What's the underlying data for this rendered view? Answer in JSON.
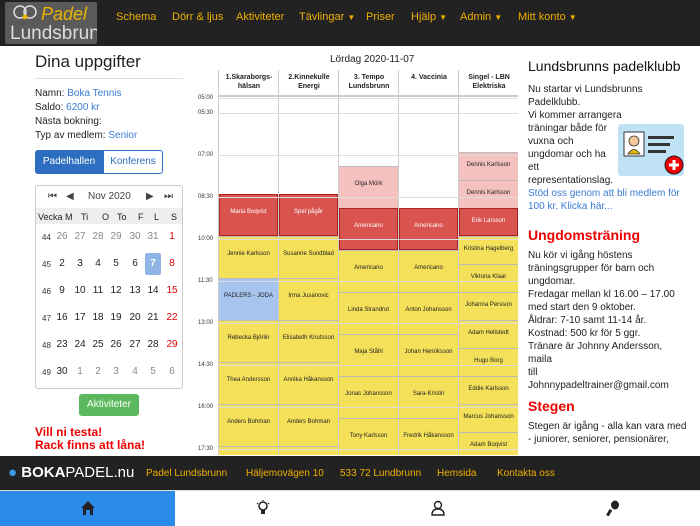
{
  "nav": {
    "logo_line1": "Padel",
    "logo_line2": "Lundsbrunn",
    "items": [
      "Schema",
      "Dörr & ljus",
      "Aktiviteter",
      "Tävlingar",
      "Priser",
      "Hjälp",
      "Admin",
      "Mitt konto"
    ]
  },
  "left": {
    "title": "Dina uppgifter",
    "name_label": "Namn:",
    "name_value": "Boka Tennis",
    "saldo_label": "Saldo:",
    "saldo_value": "6200 kr",
    "next_label": "Nästa bokning:",
    "type_label": "Typ av medlem:",
    "type_value": "Senior",
    "tab_active": "Padelhallen",
    "tab_inactive": "Konferens"
  },
  "calendar": {
    "month": "Nov 2020",
    "week_label": "Vecka",
    "weekdays": [
      "M",
      "Ti",
      "O",
      "To",
      "F",
      "L",
      "S"
    ],
    "rows": [
      {
        "week": "44",
        "days": [
          "26",
          "27",
          "28",
          "29",
          "30",
          "31",
          "1"
        ]
      },
      {
        "week": "45",
        "days": [
          "2",
          "3",
          "4",
          "5",
          "6",
          "7",
          "8"
        ]
      },
      {
        "week": "46",
        "days": [
          "9",
          "10",
          "11",
          "12",
          "13",
          "14",
          "15"
        ]
      },
      {
        "week": "47",
        "days": [
          "16",
          "17",
          "18",
          "19",
          "20",
          "21",
          "22"
        ]
      },
      {
        "week": "48",
        "days": [
          "23",
          "24",
          "25",
          "26",
          "27",
          "28",
          "29"
        ]
      },
      {
        "week": "49",
        "days": [
          "30",
          "1",
          "2",
          "3",
          "4",
          "5",
          "6"
        ]
      }
    ],
    "selected": "7"
  },
  "activities_button": "Aktiviteter",
  "notice_line1": "Vill ni testa!",
  "notice_line2": "Rack finns att låna!",
  "schedule": {
    "date": "Lördag   2020-11-07",
    "times": [
      "05:00",
      "05:30",
      "07:00",
      "08:30",
      "10:00",
      "11:30",
      "13:00",
      "14:30",
      "16:00",
      "17:30"
    ],
    "courts": [
      {
        "name1": "1.Skaraborgs-",
        "name2": "hälsan"
      },
      {
        "name1": "2.Kinnekulle",
        "name2": "Energi"
      },
      {
        "name1": "3. Tempo",
        "name2": "Lundsbrunn"
      },
      {
        "name1": "4. Vaccinia",
        "name2": ""
      },
      {
        "name1": "Singel - LBN",
        "name2": "Elektriska"
      }
    ],
    "slots": [
      [
        {
          "text": "Maria Boqvist",
          "color": "#d9534f",
          "start": 124,
          "h": 42
        },
        {
          "text": "Jennie Karlsson",
          "color": "#f5e05a",
          "start": 166,
          "h": 42
        },
        {
          "text": "PADLERS - JODA",
          "color": "#a7c4ef",
          "start": 208,
          "h": 42
        },
        {
          "text": "Rebecka Björlin",
          "color": "#f5e05a",
          "start": 250,
          "h": 42
        },
        {
          "text": "Thea Andersson",
          "color": "#f5e05a",
          "start": 292,
          "h": 42
        },
        {
          "text": "Anders Bohman",
          "color": "#f5e05a",
          "start": 334,
          "h": 42
        },
        {
          "text": "",
          "color": "#f5e05a",
          "start": 376,
          "h": 12
        }
      ],
      [
        {
          "text": "Spel pågår",
          "color": "#d9534f",
          "start": 124,
          "h": 42
        },
        {
          "text": "Susanne Sundblad",
          "color": "#f5e05a",
          "start": 166,
          "h": 42
        },
        {
          "text": "Irma Jusanovic",
          "color": "#f5e05a",
          "start": 208,
          "h": 42
        },
        {
          "text": "Elisabeth Knutsson",
          "color": "#f5e05a",
          "start": 250,
          "h": 42
        },
        {
          "text": "Annika Håkansson",
          "color": "#f5e05a",
          "start": 292,
          "h": 42
        },
        {
          "text": "Anders Bohman",
          "color": "#f5e05a",
          "start": 334,
          "h": 42
        },
        {
          "text": "",
          "color": "#f5e05a",
          "start": 376,
          "h": 12
        }
      ],
      [
        {
          "text": "Olga Mörk",
          "color": "#f4c1bf",
          "start": 96,
          "h": 42
        },
        {
          "text": "Americano",
          "color": "#d9534f",
          "start": 138,
          "h": 42
        },
        {
          "text": "Americano",
          "color": "#f5e05a",
          "start": 180,
          "h": 42
        },
        {
          "text": "Linda Strandrot",
          "color": "#f5e05a",
          "start": 222,
          "h": 42
        },
        {
          "text": "Maja Ståhl",
          "color": "#f5e05a",
          "start": 264,
          "h": 42
        },
        {
          "text": "Jonas Johansson",
          "color": "#f5e05a",
          "start": 306,
          "h": 42
        },
        {
          "text": "Tony Karlsson",
          "color": "#f5e05a",
          "start": 348,
          "h": 42
        }
      ],
      [
        {
          "text": "Americano",
          "color": "#d9534f",
          "start": 138,
          "h": 42
        },
        {
          "text": "Americano",
          "color": "#f5e05a",
          "start": 180,
          "h": 42
        },
        {
          "text": "Anton Johansson",
          "color": "#f5e05a",
          "start": 222,
          "h": 42
        },
        {
          "text": "Johan Henriksson",
          "color": "#f5e05a",
          "start": 264,
          "h": 42
        },
        {
          "text": "Sara-Kristin",
          "color": "#f5e05a",
          "start": 306,
          "h": 42
        },
        {
          "text": "Fredrik Håkansson",
          "color": "#f5e05a",
          "start": 348,
          "h": 42
        }
      ],
      [
        {
          "text": "Dennis Karlsson",
          "color": "#f4c1bf",
          "start": 82,
          "h": 28
        },
        {
          "text": "Dennis Karlsson",
          "color": "#f4c1bf",
          "start": 110,
          "h": 28
        },
        {
          "text": "Erik Larsson",
          "color": "#d9534f",
          "start": 138,
          "h": 28
        },
        {
          "text": "Kristina Hagelberg",
          "color": "#f5e05a",
          "start": 166,
          "h": 28
        },
        {
          "text": "Viktoria Klaar",
          "color": "#f5e05a",
          "start": 194,
          "h": 28
        },
        {
          "text": "Johanna Persson",
          "color": "#f5e05a",
          "start": 222,
          "h": 28
        },
        {
          "text": "Adam Hellstedt",
          "color": "#f5e05a",
          "start": 250,
          "h": 28
        },
        {
          "text": "Hugo Borg",
          "color": "#f5e05a",
          "start": 278,
          "h": 28
        },
        {
          "text": "Eddie Karlsson",
          "color": "#f5e05a",
          "start": 306,
          "h": 28
        },
        {
          "text": "Marcus Johansson",
          "color": "#f5e05a",
          "start": 334,
          "h": 28
        },
        {
          "text": "Adam Boqvist",
          "color": "#f5e05a",
          "start": 362,
          "h": 28
        }
      ]
    ]
  },
  "right": {
    "club_title": "Lundsbrunns padelklubb",
    "club_text": [
      "Nu startar vi Lundsbrunns",
      "Padelklubb.",
      "Vi kommer arrangera",
      "träningar både för",
      "vuxna och",
      "ungdomar och ha",
      "ett",
      "representationslag."
    ],
    "club_link": [
      "Stöd oss genom att bli medlem för",
      "100 kr. Klicka här..."
    ],
    "youth_title": "Ungdomsträning",
    "youth_text": [
      "Nu kör vi igång höstens",
      "träningsgrupper för barn och",
      "ungdomar.",
      "Fredagar mellan kl 16.00 – 17.00",
      "med start den 9 oktober.",
      "Åldrar: 7-10 samt 11-14 år.",
      "Kostnad: 500 kr för 5 ggr.",
      "Tränare är Johnny Andersson, maila",
      "till",
      "Johnnypadeltrainer@gmail.com"
    ],
    "stegen_title": "Stegen",
    "stegen_text": [
      "Stegen är igång - alla kan vara med",
      "- juniorer, seniorer, pensionärer,"
    ]
  },
  "footer": {
    "brand_a": "BOKA",
    "brand_b": "PADEL.nu",
    "items": [
      "Padel Lundsbrunn",
      "Häljemovägen 10",
      "533 72 Lundbrunn",
      "Hemsida",
      "Kontakta oss"
    ]
  },
  "colors": {
    "accent": "#f0b000",
    "blue": "#2d6ec0",
    "booked_red": "#d9534f",
    "booked_yellow": "#f5e05a"
  }
}
